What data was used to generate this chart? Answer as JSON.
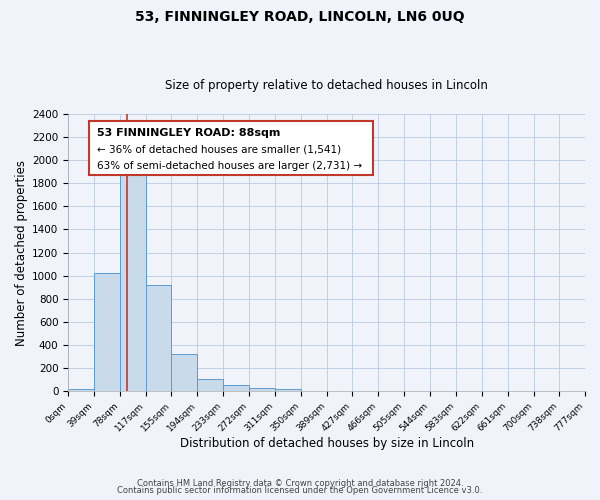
{
  "title": "53, FINNINGLEY ROAD, LINCOLN, LN6 0UQ",
  "subtitle": "Size of property relative to detached houses in Lincoln",
  "xlabel": "Distribution of detached houses by size in Lincoln",
  "ylabel": "Number of detached properties",
  "footer_lines": [
    "Contains HM Land Registry data © Crown copyright and database right 2024.",
    "Contains public sector information licensed under the Open Government Licence v3.0."
  ],
  "bin_edges": [
    0,
    39,
    78,
    117,
    155,
    194,
    233,
    272,
    311,
    350,
    389,
    427,
    466,
    505,
    544,
    583,
    622,
    661,
    700,
    738,
    777
  ],
  "bin_labels": [
    "0sqm",
    "39sqm",
    "78sqm",
    "117sqm",
    "155sqm",
    "194sqm",
    "233sqm",
    "272sqm",
    "311sqm",
    "350sqm",
    "389sqm",
    "427sqm",
    "466sqm",
    "505sqm",
    "544sqm",
    "583sqm",
    "622sqm",
    "661sqm",
    "700sqm",
    "738sqm",
    "777sqm"
  ],
  "bar_heights": [
    20,
    1025,
    1900,
    920,
    320,
    105,
    50,
    25,
    15,
    0,
    0,
    0,
    0,
    0,
    0,
    0,
    0,
    0,
    0,
    0
  ],
  "bar_color": "#c9daea",
  "bar_edge_color": "#5b9bd5",
  "ylim": [
    0,
    2400
  ],
  "yticks": [
    0,
    200,
    400,
    600,
    800,
    1000,
    1200,
    1400,
    1600,
    1800,
    2000,
    2200,
    2400
  ],
  "vline_x": 88,
  "vline_color": "#c0392b",
  "annotation_line1": "53 FINNINGLEY ROAD: 88sqm",
  "annotation_line2": "← 36% of detached houses are smaller (1,541)",
  "annotation_line3": "63% of semi-detached houses are larger (2,731) →",
  "grid_color": "#b8cce4",
  "background_color": "#f0f4fa"
}
